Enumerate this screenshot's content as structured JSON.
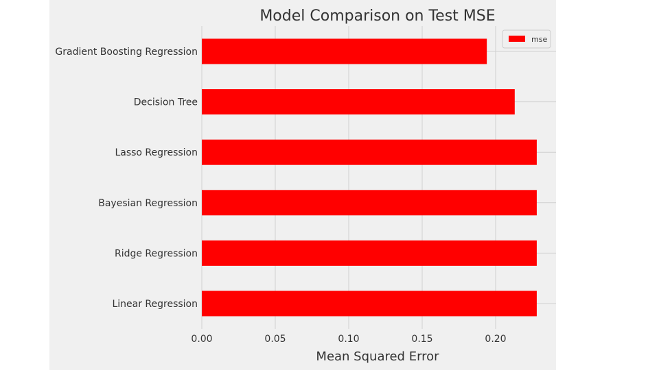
{
  "chart_data": {
    "type": "bar",
    "orientation": "horizontal",
    "title": "Model Comparison on Test MSE",
    "xlabel": "Mean Squared Error",
    "ylabel": "",
    "categories": [
      "Gradient Boosting Regression",
      "Decision Tree",
      "Lasso Regression",
      "Bayesian Regression",
      "Ridge Regression",
      "Linear Regression"
    ],
    "series": [
      {
        "name": "mse",
        "values": [
          0.194,
          0.213,
          0.228,
          0.228,
          0.228,
          0.228
        ],
        "color": "#ff0000"
      }
    ],
    "xlim": [
      0,
      0.24
    ],
    "xticks": [
      "0.00",
      "0.05",
      "0.10",
      "0.15",
      "0.20"
    ],
    "grid": true,
    "legend_position": "top-right",
    "background": "#f0f0f0",
    "grid_color": "#d0d0d0"
  }
}
